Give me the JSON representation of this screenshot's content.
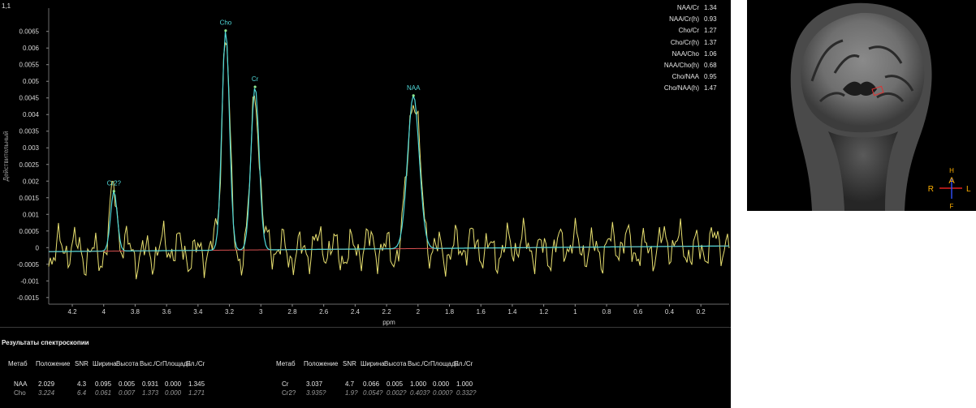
{
  "corner_label": "1,1",
  "ratios": [
    {
      "label": "NAA/Cr",
      "value": "1.34"
    },
    {
      "label": "NAA/Cr(h)",
      "value": "0.93"
    },
    {
      "label": "Cho/Cr",
      "value": "1.27"
    },
    {
      "label": "Cho/Cr(h)",
      "value": "1.37"
    },
    {
      "label": "NAA/Cho",
      "value": "1.06"
    },
    {
      "label": "NAA/Cho(h)",
      "value": "0.68"
    },
    {
      "label": "Cho/NAA",
      "value": "0.95"
    },
    {
      "label": "Cho/NAA(h)",
      "value": "1.47"
    }
  ],
  "results": {
    "title": "Результаты спектроскопии",
    "headers": [
      "Метаб",
      "Положение",
      "SNR",
      "Ширина",
      "Высота",
      "Выс./Cr",
      "Площадь",
      "Пл./Cr"
    ],
    "left_rows": [
      {
        "cells": [
          "NAA",
          "2.029",
          "4.3",
          "0.095",
          "0.005",
          "0.931",
          "0.000",
          "1.345"
        ],
        "dim": false
      },
      {
        "cells": [
          "Cho",
          "3.224",
          "6.4",
          "0.061",
          "0.007",
          "1.373",
          "0.000",
          "1.271"
        ],
        "dim": true
      }
    ],
    "right_rows": [
      {
        "cells": [
          "Cr",
          "3.037",
          "4.7",
          "0.066",
          "0.005",
          "1.000",
          "0.000",
          "1.000"
        ],
        "dim": false
      },
      {
        "cells": [
          "Cr2?",
          "3.935?",
          "1.9?",
          "0.054?",
          "0.002?",
          "0.403?",
          "0.000?",
          "0.332?"
        ],
        "dim": true
      }
    ]
  },
  "mri": {
    "orientation": {
      "top": "H",
      "center": "A",
      "left": "R",
      "right": "L",
      "bottom": "F"
    },
    "colors": {
      "axis_red": "#e02020",
      "axis_blue": "#3050ff",
      "label_orange": "#ffb000",
      "voxel_box": "#e03030"
    }
  },
  "chart_data": {
    "type": "line",
    "xlabel": "ppm",
    "ylabel": "Действительный",
    "xlim": [
      4.35,
      0.02
    ],
    "ylim": [
      -0.0017,
      0.0072
    ],
    "x_ticks": [
      4.2,
      4,
      3.8,
      3.6,
      3.4,
      3.2,
      3,
      2.8,
      2.6,
      2.4,
      2.2,
      2,
      1.8,
      1.6,
      1.4,
      1.2,
      1,
      0.8,
      0.6,
      0.4,
      0.2
    ],
    "y_ticks": [
      -0.0015,
      -0.001,
      -0.0005,
      0,
      0.0005,
      0.001,
      0.0015,
      0.002,
      0.0025,
      0.003,
      0.0035,
      0.004,
      0.0045,
      0.005,
      0.0055,
      0.006,
      0.0065
    ],
    "colors": {
      "raw": "#e8e070",
      "fit": "#50d8d8",
      "fit_overlap": "#90e890",
      "baseline": "#d85050"
    },
    "peaks": [
      {
        "label": "Cr2?",
        "ppm": 3.935,
        "height": 0.0018,
        "width": 0.054
      },
      {
        "label": "Cho",
        "ppm": 3.224,
        "height": 0.0066,
        "width": 0.061
      },
      {
        "label": "Cr",
        "ppm": 3.037,
        "height": 0.0049,
        "width": 0.066
      },
      {
        "label": "NAA",
        "ppm": 2.029,
        "height": 0.0046,
        "width": 0.095
      }
    ],
    "baseline": {
      "start": -0.00012,
      "end": 5e-05
    },
    "noise_amplitude": 0.0009
  }
}
